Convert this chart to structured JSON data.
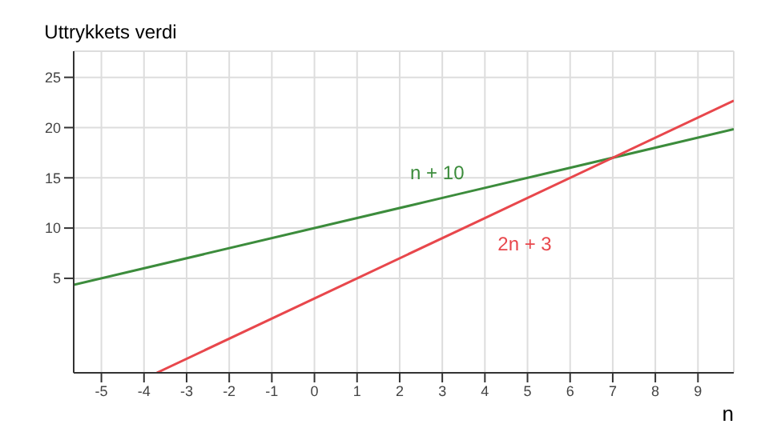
{
  "chart_data": {
    "type": "line",
    "xlabel": "n",
    "ylabel": "Uttrykkets verdi",
    "series": [
      {
        "name": "n + 10",
        "color": "#3c8c3c",
        "x": [
          -5.65,
          3.3,
          9.84
        ],
        "values": [
          4.35,
          13.3,
          19.84
        ]
      },
      {
        "name": "2n + 3",
        "color": "#e8474c",
        "x": [
          -3.7,
          4,
          9.84
        ],
        "values": [
          -4.4,
          11,
          22.68
        ]
      }
    ],
    "xlim": [
      -5.65,
      9.84
    ],
    "xticks": [
      -5,
      -4,
      -3,
      -2,
      -1,
      0,
      1,
      2,
      3,
      4,
      5,
      6,
      7,
      8,
      9
    ],
    "ylim": [
      -4.4,
      27.6
    ],
    "yticks": [
      5,
      10,
      15,
      20,
      25
    ],
    "grid": true,
    "legend": false,
    "marker": "none",
    "line_style": "solid"
  }
}
